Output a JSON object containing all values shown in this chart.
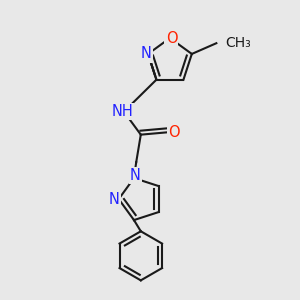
{
  "bg_color": "#e8e8e8",
  "bond_color": "#1a1a1a",
  "N_color": "#2222ff",
  "O_color": "#ff2200",
  "line_width": 1.5,
  "font_size_atoms": 10.5,
  "font_size_methyl": 10,
  "xlim": [
    0.15,
    0.85
  ],
  "ylim": [
    0.02,
    0.98
  ]
}
